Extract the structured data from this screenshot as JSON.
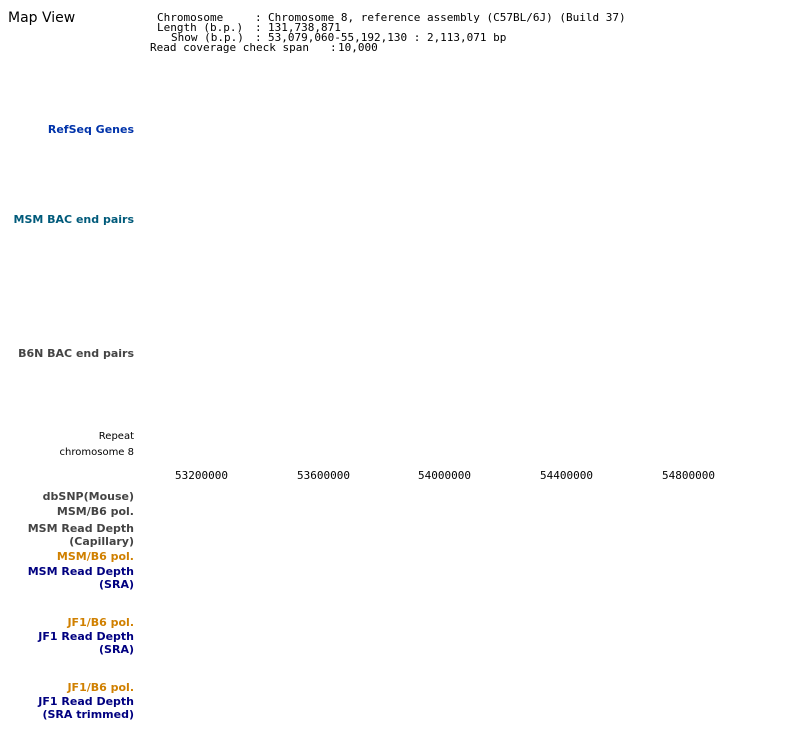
{
  "page": {
    "title": "Map View"
  },
  "info": {
    "chromosome_label": "Chromosome",
    "chromosome_value": "Chromosome 8, reference assembly (C57BL/6J) (Build 37)",
    "length_label": "Length (b.p.)",
    "length_value": "131,738,871",
    "show_label": "Show (b.p.)",
    "show_value": "53,079,060-55,192,130 : 2,113,071 bp",
    "coverage_label": "Read coverage check span",
    "coverage_value": "10,000"
  },
  "tracks": {
    "refseq": "RefSeq Genes",
    "msm_bac": "MSM BAC end pairs",
    "b6n_bac": "B6N BAC end pairs",
    "repeat": "Repeat",
    "chromosome": "chromosome 8",
    "dbsnp": "dbSNP(Mouse)",
    "msm_b6_pol_1": "MSM/B6 pol.",
    "msm_depth_cap_1": "MSM Read Depth",
    "msm_depth_cap_2": "(Capillary)",
    "msm_b6_pol_2": "MSM/B6 pol.",
    "msm_depth_sra_1": "MSM Read Depth",
    "msm_depth_sra_2": "(SRA)",
    "jf1_b6_pol_1": "JF1/B6 pol.",
    "jf1_depth_sra_1": "JF1 Read Depth",
    "jf1_depth_sra_2": "(SRA)",
    "jf1_b6_pol_2": "JF1/B6 pol.",
    "jf1_depth_trim_1": "JF1 Read Depth",
    "jf1_depth_trim_2": "(SRA trimmed)"
  },
  "axis": {
    "ticks": [
      "53200000",
      "53600000",
      "54000000",
      "54400000",
      "54800000"
    ]
  },
  "colors": {
    "highlight": "#f7d8f4",
    "refseq_bg": "#dcefff",
    "bac_bg": "#e4fbfb",
    "b6n_bg": "#f0f8f8",
    "chromosome_bar": "#006600",
    "msm_label": "#005a7a",
    "track_label": "#000080",
    "pol_label": "#d08000"
  }
}
